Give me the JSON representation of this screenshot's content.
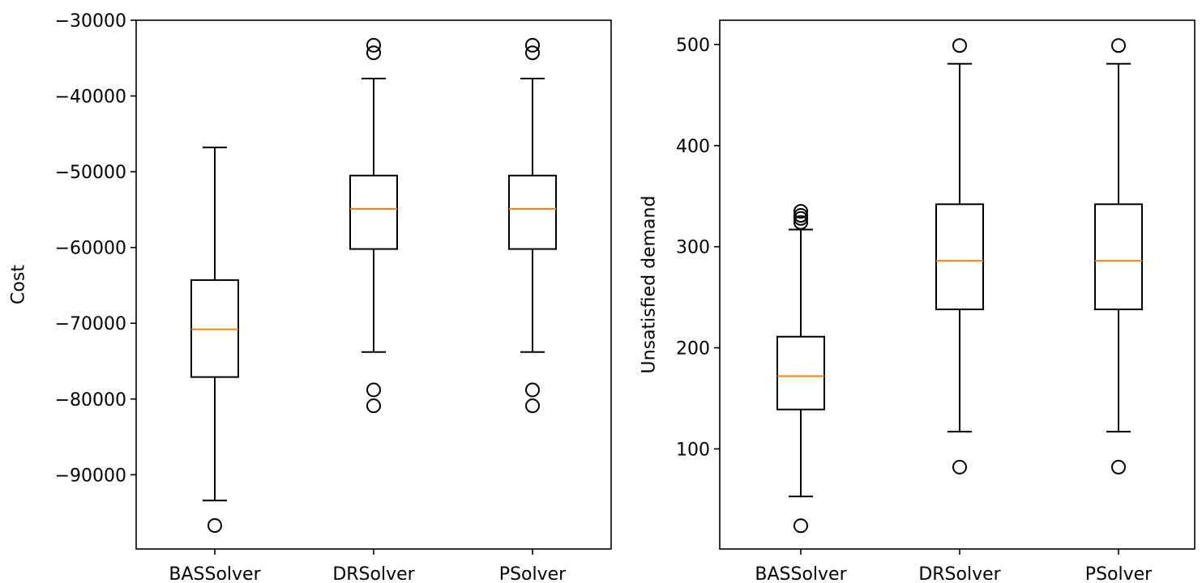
{
  "chart_data": [
    {
      "type": "box",
      "categories": [
        "BASSolver",
        "DRSolver",
        "PSolver"
      ],
      "ylabel": "Cost",
      "xlabel": "",
      "ylim": [
        -99800,
        -30000
      ],
      "yticks": [
        -30000,
        -40000,
        -50000,
        -60000,
        -70000,
        -80000,
        -90000
      ],
      "ytick_labels": [
        "−30000",
        "−40000",
        "−50000",
        "−60000",
        "−70000",
        "−80000",
        "−90000"
      ],
      "boxes": [
        {
          "category": "BASSolver",
          "whisker_low": -93400,
          "q1": -77100,
          "median": -70800,
          "q3": -64300,
          "whisker_high": -46800,
          "outliers": [
            -96700
          ]
        },
        {
          "category": "DRSolver",
          "whisker_low": -73800,
          "q1": -60200,
          "median": -54900,
          "q3": -50500,
          "whisker_high": -37700,
          "outliers": [
            -33300,
            -34300,
            -78800,
            -80900
          ]
        },
        {
          "category": "PSolver",
          "whisker_low": -73800,
          "q1": -60200,
          "median": -54900,
          "q3": -50500,
          "whisker_high": -37700,
          "outliers": [
            -33300,
            -34300,
            -78800,
            -80900
          ]
        }
      ],
      "grid": false,
      "colors": {
        "box": "#000000",
        "median": "#ff7f0e"
      }
    },
    {
      "type": "box",
      "categories": [
        "BASSolver",
        "DRSolver",
        "PSolver"
      ],
      "ylabel": "Unsatisfied demand",
      "xlabel": "",
      "ylim": [
        1,
        524
      ],
      "yticks": [
        100,
        200,
        300,
        400,
        500
      ],
      "ytick_labels": [
        "100",
        "200",
        "300",
        "400",
        "500"
      ],
      "boxes": [
        {
          "category": "BASSolver",
          "whisker_low": 53,
          "q1": 139,
          "median": 172,
          "q3": 211,
          "whisker_high": 317,
          "outliers": [
            24,
            324,
            328,
            331,
            335
          ]
        },
        {
          "category": "DRSolver",
          "whisker_low": 117,
          "q1": 238,
          "median": 286,
          "q3": 342,
          "whisker_high": 481,
          "outliers": [
            82,
            499
          ]
        },
        {
          "category": "PSolver",
          "whisker_low": 117,
          "q1": 238,
          "median": 286,
          "q3": 342,
          "whisker_high": 481,
          "outliers": [
            82,
            499
          ]
        }
      ],
      "grid": false,
      "colors": {
        "box": "#000000",
        "median": "#ff7f0e"
      }
    }
  ]
}
